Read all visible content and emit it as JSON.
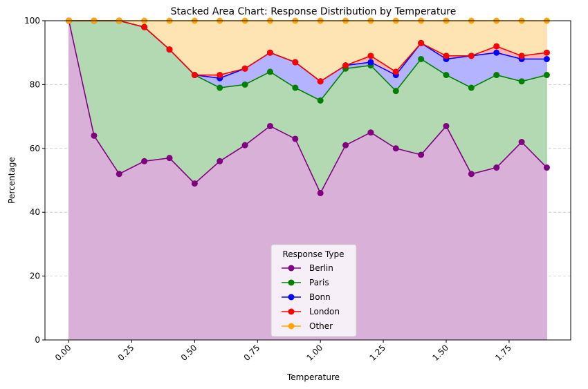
{
  "chart_data": {
    "type": "area",
    "stacked": true,
    "title": "Stacked Area Chart: Response Distribution by Temperature",
    "xlabel": "Temperature",
    "ylabel": "Percentage",
    "xlim": [
      -0.095,
      1.995
    ],
    "ylim": [
      0,
      100
    ],
    "x_ticks": [
      0.0,
      0.25,
      0.5,
      0.75,
      1.0,
      1.25,
      1.5,
      1.75
    ],
    "x_tick_labels": [
      "0.00",
      "0.25",
      "0.50",
      "0.75",
      "1.00",
      "1.25",
      "1.50",
      "1.75"
    ],
    "y_ticks": [
      0,
      20,
      40,
      60,
      80,
      100
    ],
    "y_tick_labels": [
      "0",
      "20",
      "40",
      "60",
      "80",
      "100"
    ],
    "x_tick_rotation_deg": 45,
    "grid": "y-dashed",
    "legend_title": "Response Type",
    "legend_position": "lower center",
    "x": [
      0.0,
      0.1,
      0.2,
      0.3,
      0.4,
      0.5,
      0.6,
      0.7,
      0.8,
      0.9,
      1.0,
      1.1,
      1.2,
      1.3,
      1.4,
      1.5,
      1.6,
      1.7,
      1.8,
      1.9
    ],
    "series": [
      {
        "name": "Berlin",
        "line_color": "#800080",
        "fill_color": "#d8b0d8",
        "values": [
          100,
          64,
          52,
          56,
          57,
          49,
          56,
          61,
          67,
          63,
          46,
          61,
          65,
          60,
          58,
          67,
          52,
          54,
          62,
          54
        ]
      },
      {
        "name": "Paris",
        "line_color": "#008000",
        "fill_color": "#b3d9b3",
        "values": [
          0,
          36,
          48,
          42,
          34,
          34,
          23,
          19,
          17,
          16,
          29,
          24,
          21,
          18,
          30,
          16,
          27,
          29,
          19,
          29
        ]
      },
      {
        "name": "Bonn",
        "line_color": "#0000ff",
        "fill_color": "#b3b3ff",
        "values": [
          0,
          0,
          0,
          0,
          0,
          0,
          3,
          5,
          6,
          8,
          6,
          1,
          1,
          5,
          5,
          5,
          10,
          7,
          7,
          5
        ]
      },
      {
        "name": "London",
        "line_color": "#ff0000",
        "fill_color": "#ffb3b3",
        "values": [
          0,
          0,
          0,
          0,
          0,
          0,
          1,
          0,
          0,
          0,
          0,
          0,
          2,
          1,
          0,
          1,
          0,
          2,
          1,
          2
        ]
      },
      {
        "name": "Other",
        "line_color": "#ffa500",
        "fill_color": "#ffe4b3",
        "values": [
          0,
          0,
          0,
          2,
          9,
          17,
          17,
          15,
          10,
          13,
          19,
          14,
          11,
          16,
          7,
          11,
          11,
          8,
          11,
          10
        ]
      }
    ]
  }
}
